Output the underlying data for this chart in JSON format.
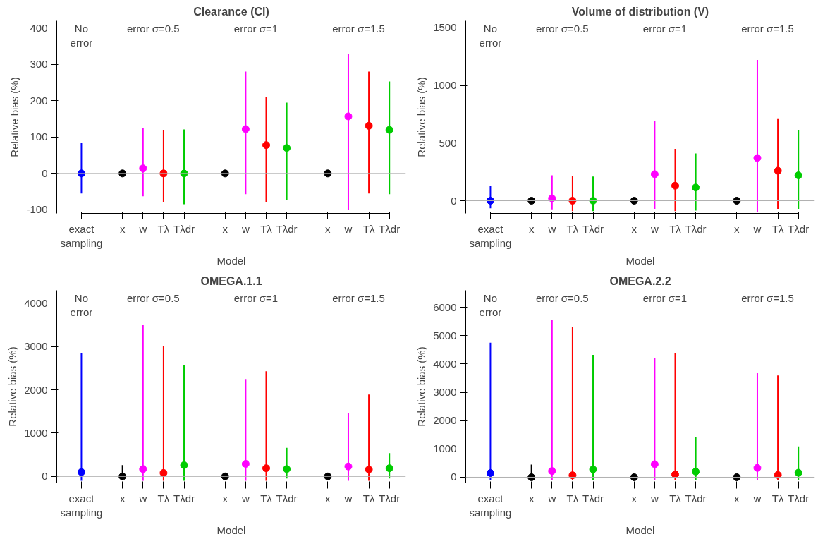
{
  "chart_data": [
    {
      "type": "scatter",
      "title": "Clearance (Cl)",
      "xlabel": "Model",
      "ylabel": "Relative bias (%)",
      "categories": [
        "exact\nsampling",
        null,
        "x",
        "w",
        "Tλ",
        "Tλdr",
        null,
        "x",
        "w",
        "Tλ",
        "Tλdr",
        null,
        "x",
        "w",
        "Tλ",
        "Tλdr"
      ],
      "values": [
        0,
        null,
        0,
        14,
        0,
        0,
        null,
        0,
        122,
        78,
        70,
        null,
        0,
        157,
        131,
        120
      ],
      "errors": [
        [
          -55,
          83
        ],
        null,
        null,
        [
          -63,
          125
        ],
        [
          -78,
          120
        ],
        [
          -85,
          121
        ],
        null,
        null,
        [
          -57,
          280
        ],
        [
          -78,
          210
        ],
        [
          -73,
          195
        ],
        null,
        null,
        [
          -100,
          328
        ],
        [
          -55,
          280
        ],
        [
          -57,
          253
        ]
      ],
      "colors": [
        "#0000ff",
        null,
        "#000000",
        "#ff00ff",
        "#ff0000",
        "#00cc00",
        null,
        "#000000",
        "#ff00ff",
        "#ff0000",
        "#00cc00",
        null,
        "#000000",
        "#ff00ff",
        "#ff0000",
        "#00cc00"
      ],
      "ylim": [
        -110,
        420
      ],
      "yticks": [
        -100,
        0,
        100,
        200,
        300,
        400
      ],
      "marker": "circle",
      "grid": false,
      "ref_lines": [
        {
          "axis": "y",
          "value": 0,
          "color": "#b0b0b0"
        }
      ],
      "annotations": [
        "No\nerror",
        "error σ=0.5",
        "error σ=1",
        "error σ=1.5"
      ]
    },
    {
      "type": "scatter",
      "title": "Volume of distribution (V)",
      "xlabel": "Model",
      "ylabel": "Relative bias (%)",
      "categories": [
        "exact\nsampling",
        null,
        "x",
        "w",
        "Tλ",
        "Tλdr",
        null,
        "x",
        "w",
        "Tλ",
        "Tλdr",
        null,
        "x",
        "w",
        "Tλ",
        "Tλdr"
      ],
      "values": [
        0,
        null,
        0,
        20,
        0,
        0,
        null,
        0,
        230,
        130,
        115,
        null,
        0,
        370,
        260,
        220
      ],
      "errors": [
        [
          -65,
          130
        ],
        null,
        null,
        [
          -75,
          220
        ],
        [
          -90,
          215
        ],
        [
          -90,
          210
        ],
        null,
        null,
        [
          -70,
          690
        ],
        [
          -90,
          450
        ],
        [
          -85,
          410
        ],
        null,
        null,
        [
          -100,
          1220
        ],
        [
          -70,
          715
        ],
        [
          -70,
          615
        ]
      ],
      "colors": [
        "#0000ff",
        null,
        "#000000",
        "#ff00ff",
        "#ff0000",
        "#00cc00",
        null,
        "#000000",
        "#ff00ff",
        "#ff0000",
        "#00cc00",
        null,
        "#000000",
        "#ff00ff",
        "#ff0000",
        "#00cc00"
      ],
      "ylim": [
        -110,
        1560
      ],
      "yticks": [
        0,
        500,
        1000,
        1500
      ],
      "marker": "circle",
      "grid": false,
      "ref_lines": [
        {
          "axis": "y",
          "value": 0,
          "color": "#b0b0b0"
        }
      ],
      "annotations": [
        "No\nerror",
        "error σ=0.5",
        "error σ=1",
        "error σ=1.5"
      ]
    },
    {
      "type": "scatter",
      "title": "OMEGA.1.1",
      "xlabel": "Model",
      "ylabel": "Relative bias (%)",
      "categories": [
        "exact\nsampling",
        null,
        "x",
        "w",
        "Tλ",
        "Tλdr",
        null,
        "x",
        "w",
        "Tλ",
        "Tλdr",
        null,
        "x",
        "w",
        "Tλ",
        "Tλdr"
      ],
      "values": [
        100,
        null,
        0,
        170,
        80,
        260,
        null,
        0,
        290,
        190,
        170,
        null,
        0,
        230,
        160,
        190
      ],
      "errors": [
        [
          -100,
          2850
        ],
        null,
        [
          -20,
          260
        ],
        [
          -100,
          3500
        ],
        [
          -100,
          3020
        ],
        [
          -100,
          2580
        ],
        null,
        null,
        [
          -100,
          2250
        ],
        [
          -100,
          2430
        ],
        [
          -50,
          660
        ],
        null,
        null,
        [
          -100,
          1470
        ],
        [
          -100,
          1890
        ],
        [
          -50,
          540
        ]
      ],
      "colors": [
        "#0000ff",
        null,
        "#000000",
        "#ff00ff",
        "#ff0000",
        "#00cc00",
        null,
        "#000000",
        "#ff00ff",
        "#ff0000",
        "#00cc00",
        null,
        "#000000",
        "#ff00ff",
        "#ff0000",
        "#00cc00"
      ],
      "ylim": [
        -150,
        4300
      ],
      "yticks": [
        0,
        1000,
        2000,
        3000,
        4000
      ],
      "marker": "circle",
      "grid": false,
      "ref_lines": [
        {
          "axis": "y",
          "value": 0,
          "color": "#b0b0b0"
        }
      ],
      "annotations": [
        "No\nerror",
        "error σ=0.5",
        "error σ=1",
        "error σ=1.5"
      ]
    },
    {
      "type": "scatter",
      "title": "OMEGA.2.2",
      "xlabel": "Model",
      "ylabel": "Relative bias (%)",
      "categories": [
        "exact\nsampling",
        null,
        "x",
        "w",
        "Tλ",
        "Tλdr",
        null,
        "x",
        "w",
        "Tλ",
        "Tλdr",
        null,
        "x",
        "w",
        "Tλ",
        "Tλdr"
      ],
      "values": [
        150,
        null,
        0,
        220,
        70,
        280,
        null,
        0,
        460,
        100,
        200,
        null,
        0,
        330,
        80,
        160
      ],
      "errors": [
        [
          -100,
          4750
        ],
        null,
        [
          -20,
          450
        ],
        [
          -100,
          5550
        ],
        [
          -100,
          5300
        ],
        [
          -100,
          4320
        ],
        null,
        null,
        [
          -100,
          4220
        ],
        [
          -100,
          4370
        ],
        [
          -100,
          1430
        ],
        null,
        null,
        [
          -100,
          3680
        ],
        [
          -100,
          3590
        ],
        [
          -100,
          1090
        ]
      ],
      "colors": [
        "#0000ff",
        null,
        "#000000",
        "#ff00ff",
        "#ff0000",
        "#00cc00",
        null,
        "#000000",
        "#ff00ff",
        "#ff0000",
        "#00cc00",
        null,
        "#000000",
        "#ff00ff",
        "#ff0000",
        "#00cc00"
      ],
      "ylim": [
        -200,
        6600
      ],
      "yticks": [
        0,
        1000,
        2000,
        3000,
        4000,
        5000,
        6000
      ],
      "marker": "circle",
      "grid": false,
      "ref_lines": [
        {
          "axis": "y",
          "value": 0,
          "color": "#b0b0b0"
        }
      ],
      "annotations": [
        "No\nerror",
        "error σ=0.5",
        "error σ=1",
        "error σ=1.5"
      ]
    }
  ]
}
